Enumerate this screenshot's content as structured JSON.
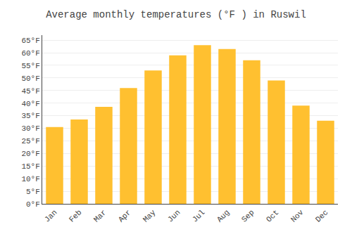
{
  "chart_data": {
    "type": "bar",
    "title": "Average monthly temperatures (°F ) in Ruswil",
    "categories": [
      "Jan",
      "Feb",
      "Mar",
      "Apr",
      "May",
      "Jun",
      "Jul",
      "Aug",
      "Sep",
      "Oct",
      "Nov",
      "Dec"
    ],
    "values": [
      30.5,
      33.5,
      38.5,
      46.0,
      53.0,
      59.0,
      63.0,
      61.5,
      57.0,
      49.0,
      39.0,
      33.0
    ],
    "color": "#FFC030",
    "ylim": [
      0,
      67
    ],
    "yticks": [
      {
        "value": 0,
        "label": "0°F"
      },
      {
        "value": 5,
        "label": "5°F"
      },
      {
        "value": 10,
        "label": "10°F"
      },
      {
        "value": 15,
        "label": "15°F"
      },
      {
        "value": 20,
        "label": "20°F"
      },
      {
        "value": 25,
        "label": "25°F"
      },
      {
        "value": 30,
        "label": "30°F"
      },
      {
        "value": 35,
        "label": "35°F"
      },
      {
        "value": 40,
        "label": "40°F"
      },
      {
        "value": 45,
        "label": "45°F"
      },
      {
        "value": 50,
        "label": "50°F"
      },
      {
        "value": 55,
        "label": "55°F"
      },
      {
        "value": 60,
        "label": "60°F"
      },
      {
        "value": 65,
        "label": "65°F"
      }
    ],
    "grid": true
  }
}
